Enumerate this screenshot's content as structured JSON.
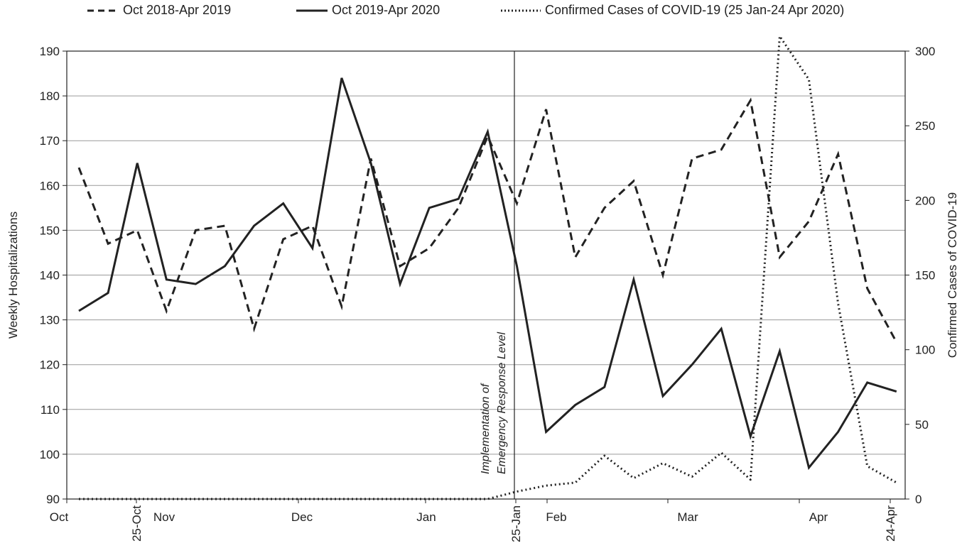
{
  "chart_data": {
    "type": "line",
    "title": "",
    "ylabel": "Weekly Hospitalizations",
    "y2label": "Confirmed Cases of COVID-19",
    "ylim": [
      90,
      190
    ],
    "yticks": [
      90,
      100,
      110,
      120,
      130,
      140,
      150,
      160,
      170,
      180,
      190
    ],
    "y2lim": [
      0,
      300
    ],
    "y2ticks": [
      0,
      50,
      100,
      150,
      200,
      250,
      300
    ],
    "grid": true,
    "legend_position": "top",
    "x_month_labels": [
      "Oct",
      "Nov",
      "Dec",
      "Jan",
      "Feb",
      "Mar",
      "Apr"
    ],
    "x_date_labels": [
      "25-Oct",
      "25-Jan",
      "24-Apr"
    ],
    "annotation": {
      "line1": "Implementation of",
      "line2": "Emergency Response Level",
      "at": "25-Jan"
    },
    "series": [
      {
        "name": "Oct 2018-Apr 2019",
        "style": "dashed",
        "axis": "left",
        "values": [
          164,
          147,
          150,
          132,
          150,
          151,
          128,
          148,
          151,
          133,
          166,
          142,
          146,
          155,
          171,
          156,
          177,
          144,
          155,
          161,
          140,
          166,
          168,
          179,
          144,
          152,
          167,
          137,
          125
        ]
      },
      {
        "name": "Oct 2019-Apr 2020",
        "style": "solid",
        "axis": "left",
        "values": [
          132,
          136,
          165,
          139,
          138,
          142,
          151,
          156,
          146,
          184,
          165,
          138,
          155,
          157,
          172,
          142,
          105,
          111,
          115,
          139,
          113,
          120,
          128,
          104,
          123,
          97,
          105,
          116,
          114
        ]
      },
      {
        "name": "Confirmed Cases of COVID-19 (25 Jan-24 Apr 2020)",
        "style": "dotted",
        "axis": "right",
        "values": [
          0,
          0,
          0,
          0,
          0,
          0,
          0,
          0,
          0,
          0,
          0,
          0,
          0,
          0,
          0,
          5,
          9,
          11,
          29,
          14,
          24,
          15,
          31,
          13,
          310,
          281,
          131,
          22,
          11
        ]
      }
    ]
  }
}
